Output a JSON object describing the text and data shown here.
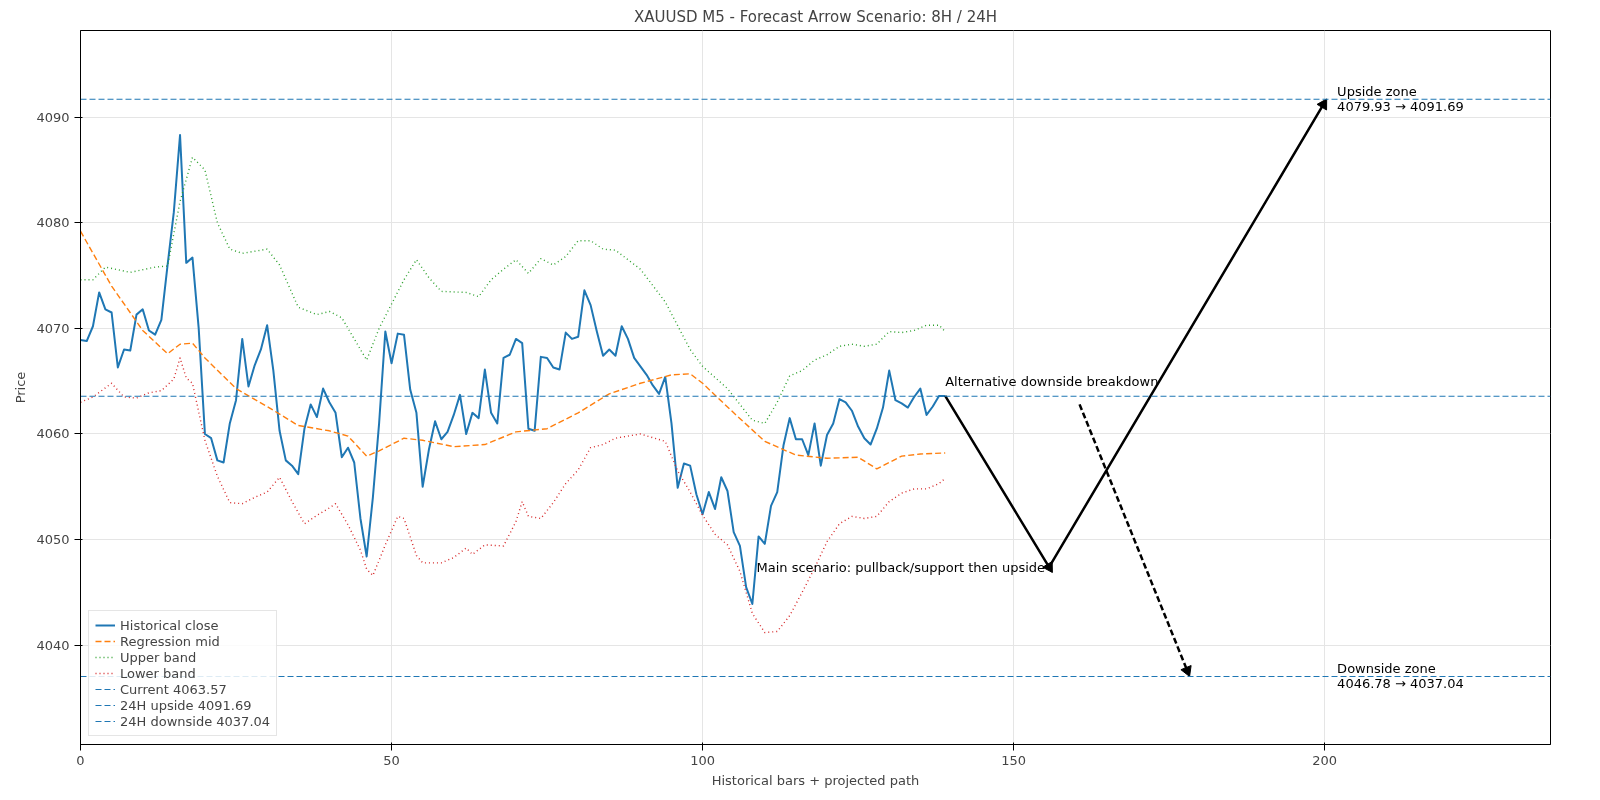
{
  "chart_data": {
    "type": "line",
    "title": "XAUUSD M5 - Forecast Arrow Scenario: 8H / 24H",
    "xlabel": "Historical bars + projected path",
    "ylabel": "Price",
    "xlim": [
      0,
      236.3
    ],
    "ylim": [
      4030.6,
      4098.2
    ],
    "xticks": [
      0,
      50,
      100,
      150,
      200
    ],
    "yticks": [
      4040,
      4050,
      4060,
      4070,
      4080,
      4090
    ],
    "grid": true,
    "legend": "bottom left",
    "marker": "none",
    "series": [
      {
        "name": "Historical close",
        "color": "#1f77b4",
        "line_style": "solid",
        "x": [
          0,
          1,
          2,
          3,
          4,
          5,
          6,
          7,
          8,
          9,
          10,
          11,
          12,
          13,
          14,
          15,
          16,
          17,
          18,
          19,
          20,
          21,
          22,
          23,
          24,
          25,
          26,
          27,
          28,
          29,
          30,
          31,
          32,
          33,
          34,
          35,
          36,
          37,
          38,
          39,
          40,
          41,
          42,
          43,
          44,
          45,
          46,
          47,
          48,
          49,
          50,
          51,
          52,
          53,
          54,
          55,
          56,
          57,
          58,
          59,
          60,
          61,
          62,
          63,
          64,
          65,
          66,
          67,
          68,
          69,
          70,
          71,
          72,
          73,
          74,
          75,
          76,
          77,
          78,
          79,
          80,
          81,
          82,
          83,
          84,
          85,
          86,
          87,
          88,
          89,
          90,
          91,
          92,
          93,
          94,
          95,
          96,
          97,
          98,
          99,
          100,
          101,
          102,
          103,
          104,
          105,
          106,
          107,
          108,
          109,
          110,
          111,
          112,
          113,
          114,
          115,
          116,
          117,
          118,
          119,
          120,
          121,
          122,
          123,
          124,
          125,
          126,
          127,
          128,
          129,
          130,
          131,
          132,
          133,
          134,
          135,
          136,
          137,
          138,
          139
        ],
        "values": [
          4068.9,
          4068.8,
          4070.2,
          4073.4,
          4071.8,
          4071.5,
          4066.3,
          4068.0,
          4067.9,
          4071.3,
          4071.8,
          4069.8,
          4069.4,
          4070.8,
          4076,
          4081,
          4088.3,
          4076.2,
          4076.7,
          4070,
          4060,
          4059.6,
          4057.5,
          4057.3,
          4061,
          4063.2,
          4069,
          4064.5,
          4066.5,
          4068,
          4070.3,
          4066,
          4060.3,
          4057.5,
          4057,
          4056.2,
          4060.5,
          4062.8,
          4061.6,
          4064.3,
          4063,
          4062,
          4057.8,
          4058.7,
          4057.3,
          4052,
          4048.4,
          4054,
          4061,
          4069.7,
          4066.7,
          4069.5,
          4069.4,
          4064.2,
          4062,
          4055,
          4058.5,
          4061.2,
          4059.5,
          4060.2,
          4061.8,
          4063.7,
          4060,
          4062,
          4061.5,
          4066.1,
          4062,
          4061,
          4067.2,
          4067.5,
          4069,
          4068.6,
          4060.5,
          4060.3,
          4067.3,
          4067.2,
          4066.3,
          4066.1,
          4069.6,
          4069,
          4069.2,
          4073.6,
          4072.2,
          4069.7,
          4067.4,
          4068,
          4067.4,
          4070.2,
          4069,
          4067.2,
          4066.4,
          4065.6,
          4064.6,
          4063.8,
          4065.4,
          4061,
          4054.9,
          4057.2,
          4057,
          4054.3,
          4052.4,
          4054.5,
          4052.9,
          4055.9,
          4054.6,
          4050.7,
          4049.4,
          4045.5,
          4043.9,
          4050.3,
          4049.6,
          4053.2,
          4054.5,
          4058.9,
          4061.5,
          4059.5,
          4059.5,
          4058,
          4061,
          4057,
          4059.9,
          4061,
          4063.3,
          4063,
          4062.2,
          4060.7,
          4059.6,
          4059,
          4060.5,
          4062.5,
          4066,
          4063.2,
          4062.9,
          4062.5,
          4063.5,
          4064.3,
          4061.8,
          4062.6,
          4063.6,
          4063.6
        ]
      },
      {
        "name": "Regression mid",
        "color": "#ff7f0e",
        "line_style": "dashed",
        "x": [
          0,
          5,
          10,
          14,
          16,
          18,
          20,
          25,
          30,
          35,
          40,
          43,
          46,
          48,
          52,
          55,
          60,
          65,
          70,
          75,
          80,
          85,
          90,
          95,
          98,
          100,
          105,
          110,
          115,
          120,
          125,
          128,
          132,
          135,
          139
        ],
        "values": [
          4079.2,
          4074,
          4069.8,
          4067.6,
          4068.5,
          4068.6,
          4067.2,
          4064.3,
          4062.6,
          4060.8,
          4060.3,
          4059.8,
          4057.9,
          4058.4,
          4059.6,
          4059.4,
          4058.8,
          4059,
          4060.2,
          4060.5,
          4062,
          4063.8,
          4064.8,
          4065.6,
          4065.7,
          4064.8,
          4062,
          4059.3,
          4058,
          4057.7,
          4057.8,
          4056.7,
          4057.9,
          4058.1,
          4058.2
        ]
      },
      {
        "name": "Upper band",
        "color": "#2ca02c",
        "line_style": "dotted",
        "x": [
          0,
          2,
          4,
          8,
          12,
          14,
          16,
          18,
          20,
          22,
          24,
          26,
          30,
          32,
          35,
          38,
          40,
          42,
          44,
          46,
          48,
          52,
          54,
          56,
          58,
          62,
          64,
          66,
          68,
          70,
          72,
          74,
          76,
          78,
          80,
          82,
          84,
          86,
          90,
          94,
          98,
          100,
          104,
          108,
          110,
          112,
          114,
          116,
          118,
          120,
          122,
          124,
          126,
          128,
          130,
          132,
          134,
          136,
          138,
          139
        ],
        "values": [
          4074.6,
          4074.6,
          4075.8,
          4075.3,
          4075.8,
          4075.9,
          4082,
          4086.2,
          4085,
          4080,
          4077.5,
          4077.1,
          4077.5,
          4076,
          4072,
          4071.3,
          4071.6,
          4071,
          4069,
          4067,
          4070,
          4074.6,
          4076.5,
          4074.8,
          4073.5,
          4073.4,
          4073,
          4074.6,
          4075.6,
          4076.5,
          4075.2,
          4076.6,
          4076,
          4076.8,
          4078.3,
          4078.3,
          4077.5,
          4077.4,
          4075.6,
          4072.5,
          4068,
          4066.4,
          4064.3,
          4061.3,
          4061,
          4063,
          4065.5,
          4066,
          4067,
          4067.5,
          4068.3,
          4068.5,
          4068.3,
          4068.5,
          4069.7,
          4069.6,
          4069.8,
          4070.3,
          4070.3,
          4069.7
        ]
      },
      {
        "name": "Lower band",
        "color": "#d62728",
        "line_style": "dotted",
        "x": [
          0,
          2,
          5,
          7,
          9,
          11,
          13,
          15,
          16,
          17,
          18,
          20,
          22,
          24,
          26,
          28,
          30,
          32,
          34,
          36,
          38,
          40,
          41,
          43,
          45,
          46,
          47,
          49,
          51,
          52,
          54,
          55,
          58,
          60,
          62,
          63,
          65,
          68,
          70,
          71,
          72,
          74,
          76,
          78,
          80,
          82,
          84,
          86,
          88,
          90,
          94,
          96,
          98,
          100,
          102,
          104,
          106,
          108,
          110,
          112,
          114,
          116,
          118,
          120,
          122,
          124,
          126,
          128,
          130,
          132,
          134,
          136,
          138,
          139
        ],
        "values": [
          4063,
          4063.5,
          4064.8,
          4063.5,
          4063.4,
          4063.9,
          4064.1,
          4065.2,
          4067.2,
          4065.3,
          4064.8,
          4059.4,
          4056,
          4053.5,
          4053.4,
          4054,
          4054.5,
          4055.9,
          4053.6,
          4051.5,
          4052.3,
          4053,
          4053.4,
          4051.4,
          4049,
          4047.2,
          4046.6,
          4049.5,
          4052.2,
          4052,
          4048.5,
          4047.8,
          4047.8,
          4048.3,
          4049.2,
          4048.6,
          4049.5,
          4049.4,
          4051.7,
          4053.6,
          4052.2,
          4052,
          4053.5,
          4055.3,
          4056.6,
          4058.7,
          4059,
          4059.6,
          4059.8,
          4060,
          4059.3,
          4056.5,
          4054.5,
          4052.3,
          4050.5,
          4049.5,
          4047,
          4043,
          4041.2,
          4041.3,
          4042.8,
          4045,
          4047.3,
          4049.8,
          4051.5,
          4052.2,
          4052,
          4052.2,
          4053.6,
          4054.4,
          4054.8,
          4054.8,
          4055.3,
          4055.8
        ]
      },
      {
        "color": "#000000",
        "line_style": "solid",
        "marker": "triangle",
        "x": [
          139,
          155.7,
          199.8
        ],
        "values": [
          4063.6,
          4047.4,
          4091.2
        ]
      },
      {
        "color": "#000000",
        "line_style": "dashed",
        "marker": "triangle",
        "x": [
          160.6,
          177.9
        ],
        "values": [
          4062.8,
          4037.6
        ]
      }
    ],
    "ref_lines": [
      {
        "axis": "y",
        "value": 4063.57,
        "label": "Current 4063.57",
        "color": "#1f77b4",
        "line_style": "dashed"
      },
      {
        "axis": "y",
        "value": 4091.69,
        "label": "24H upside 4091.69",
        "color": "#1f77b4",
        "line_style": "dashed"
      },
      {
        "axis": "y",
        "value": 4037.04,
        "label": "24H downside 4037.04",
        "color": "#1f77b4",
        "line_style": "dashed"
      }
    ],
    "annotations": [
      {
        "text": "Alternative downside breakdown",
        "x": 139,
        "y": 4063.6
      },
      {
        "text": "Main scenario: pullback/support then upside",
        "x": 155.7,
        "y": 4047.4
      },
      {
        "text": "Upside zone\n4079.93 → 4091.69",
        "x": 202,
        "y": 4091.69
      },
      {
        "text": "Downside zone\n4046.78 → 4037.04",
        "x": 202,
        "y": 4037.04
      }
    ]
  }
}
